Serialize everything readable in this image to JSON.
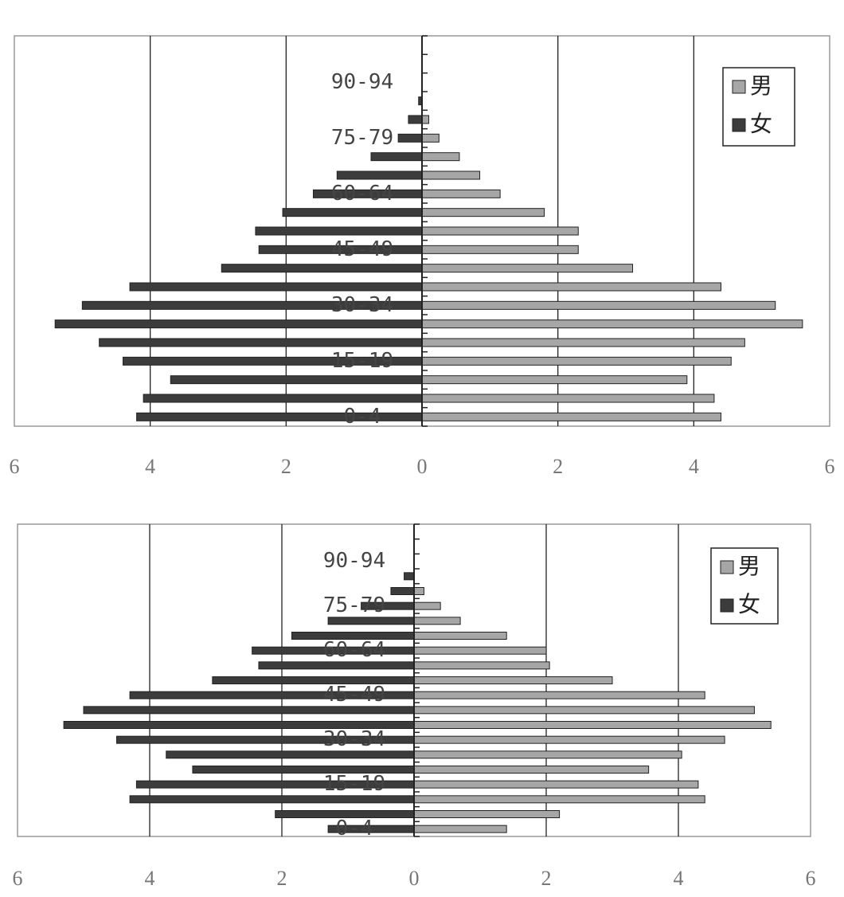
{
  "chart_data": [
    {
      "type": "pyramid",
      "categories": [
        "0-4",
        null,
        null,
        "15-19",
        null,
        null,
        "30-34",
        null,
        null,
        "45-49",
        null,
        null,
        "60-64",
        null,
        null,
        "75-79",
        null,
        null,
        "90-94",
        null,
        null
      ],
      "series": [
        {
          "name": "男",
          "color": "#a6a6a6",
          "values": [
            4.4,
            4.3,
            3.9,
            4.55,
            4.75,
            5.6,
            5.2,
            4.4,
            3.1,
            2.3,
            2.3,
            1.8,
            1.15,
            0.85,
            0.55,
            0.25,
            0.1,
            0,
            0,
            0,
            0
          ]
        },
        {
          "name": "女",
          "color": "#3c3c3c",
          "values": [
            -4.2,
            -4.1,
            -3.7,
            -4.4,
            -4.75,
            -5.4,
            -5.0,
            -4.3,
            -2.95,
            -2.4,
            -2.45,
            -2.05,
            -1.6,
            -1.25,
            -0.75,
            -0.35,
            -0.2,
            -0.05,
            0,
            0,
            0
          ]
        }
      ],
      "xlim": [
        -6,
        6
      ],
      "xticks": [
        {
          "value": -6,
          "label": "6"
        },
        {
          "value": -4,
          "label": "4"
        },
        {
          "value": -2,
          "label": "2"
        },
        0,
        2,
        4,
        6
      ],
      "grid": true,
      "legend": "upper right"
    },
    {
      "type": "pyramid",
      "categories": [
        "0-4",
        null,
        null,
        "15-19",
        null,
        null,
        "30-34",
        null,
        null,
        "45-49",
        null,
        null,
        "60-64",
        null,
        null,
        "75-79",
        null,
        null,
        "90-94",
        null,
        null
      ],
      "series": [
        {
          "name": "男",
          "color": "#a6a6a6",
          "values": [
            1.4,
            2.2,
            4.4,
            4.3,
            3.55,
            4.05,
            4.7,
            5.4,
            5.15,
            4.4,
            3.0,
            2.05,
            2.0,
            1.4,
            0.7,
            0.4,
            0.15,
            0,
            0,
            0,
            0
          ]
        },
        {
          "name": "女",
          "color": "#3c3c3c",
          "values": [
            -1.3,
            -2.1,
            -4.3,
            -4.2,
            -3.35,
            -3.75,
            -4.5,
            -5.3,
            -5.0,
            -4.3,
            -3.05,
            -2.35,
            -2.45,
            -1.85,
            -1.3,
            -0.8,
            -0.35,
            -0.15,
            0,
            0,
            0
          ]
        }
      ],
      "xlim": [
        -6,
        6
      ],
      "xticks": [
        {
          "value": -6,
          "label": "6"
        },
        {
          "value": -4,
          "label": "4"
        },
        {
          "value": -2,
          "label": "2"
        },
        0,
        2,
        4,
        6
      ],
      "grid": true,
      "legend": "upper right"
    }
  ]
}
